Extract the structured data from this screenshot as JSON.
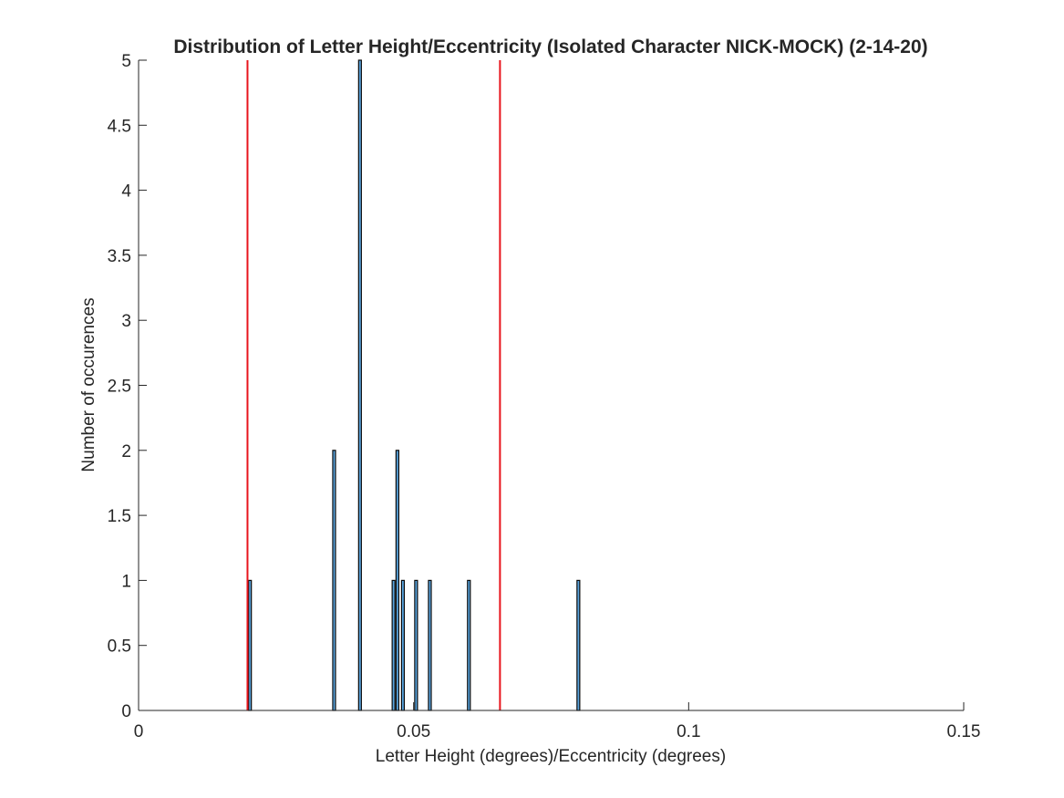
{
  "chart_data": {
    "type": "bar",
    "title": "Distribution of Letter Height/Eccentricity (Isolated Character NICK-MOCK) (2-14-20)",
    "xlabel": "Letter Height (degrees)/Eccentricity (degrees)",
    "ylabel": "Number of occurences",
    "xlim": [
      0,
      0.15
    ],
    "ylim": [
      0,
      5
    ],
    "xticks": [
      0,
      0.05,
      0.1,
      0.15
    ],
    "xtick_labels": [
      "0",
      "0.05",
      "0.1",
      "0.15"
    ],
    "yticks": [
      0,
      0.5,
      1,
      1.5,
      2,
      2.5,
      3,
      3.5,
      4,
      4.5,
      5
    ],
    "ytick_labels": [
      "0",
      "0.5",
      "1",
      "1.5",
      "2",
      "2.5",
      "3",
      "3.5",
      "4",
      "4.5",
      "5"
    ],
    "bin_width": 0.0005,
    "bars": [
      {
        "x": 0.02,
        "count": 1
      },
      {
        "x": 0.0353,
        "count": 2
      },
      {
        "x": 0.04,
        "count": 5
      },
      {
        "x": 0.0461,
        "count": 1
      },
      {
        "x": 0.0468,
        "count": 2
      },
      {
        "x": 0.0478,
        "count": 1
      },
      {
        "x": 0.0502,
        "count": 1
      },
      {
        "x": 0.0527,
        "count": 1
      },
      {
        "x": 0.0598,
        "count": 1
      },
      {
        "x": 0.0797,
        "count": 1
      }
    ],
    "bar_fill": "#5aa5df",
    "bar_edge": "#0a0a0a",
    "reference_lines": [
      {
        "x": 0.0198,
        "color": "#e8141c"
      },
      {
        "x": 0.0657,
        "color": "#e8141c"
      }
    ],
    "grid": false,
    "box": false
  }
}
